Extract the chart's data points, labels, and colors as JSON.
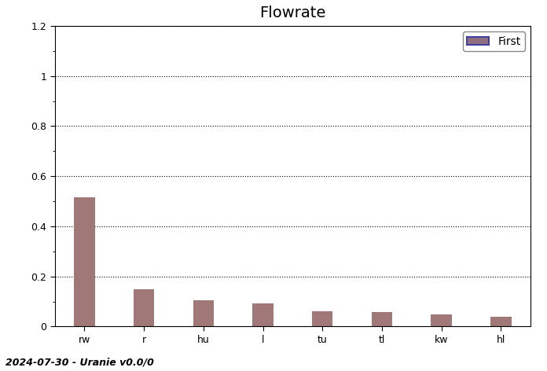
{
  "title": "Flowrate",
  "categories": [
    "rw",
    "r",
    "hu",
    "l",
    "tu",
    "tl",
    "kw",
    "hl"
  ],
  "values": [
    0.516,
    0.148,
    0.105,
    0.092,
    0.062,
    0.058,
    0.048,
    0.038
  ],
  "bar_color": "#a07878",
  "legend_label": "First",
  "legend_facecolor": "#907080",
  "legend_edgecolor": "#4040a0",
  "ylim": [
    0,
    1.2
  ],
  "yticks": [
    0,
    0.2,
    0.4,
    0.6,
    0.8,
    1.0,
    1.2
  ],
  "ytick_labels": [
    "0",
    "0.2",
    "0.4",
    "0.6",
    "0.8",
    "1",
    "1.2"
  ],
  "ylabel": "",
  "xlabel": "",
  "footer": "2024-07-30 - Uranie v0.0/0",
  "background_color": "#ffffff",
  "grid_color": "#000000",
  "title_fontsize": 14,
  "footer_fontsize": 9,
  "tick_fontsize": 9,
  "bar_width": 0.35
}
